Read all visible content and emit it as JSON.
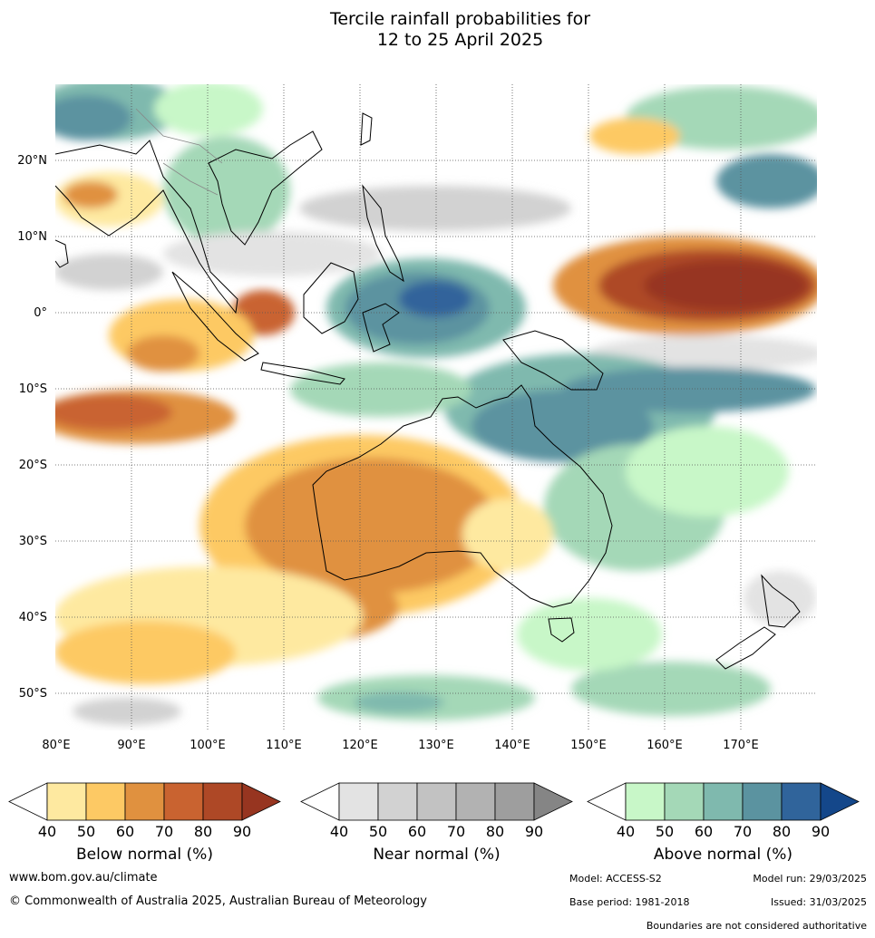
{
  "title_line1": "Tercile rainfall probabilities for",
  "title_line2": "12 to 25 April 2025",
  "lon_ticks": [
    "80°E",
    "90°E",
    "100°E",
    "110°E",
    "120°E",
    "130°E",
    "140°E",
    "150°E",
    "160°E",
    "170°E"
  ],
  "lat_ticks": [
    "20°N",
    "10°N",
    "0°",
    "10°S",
    "20°S",
    "30°S",
    "40°S",
    "50°S"
  ],
  "legends": [
    {
      "label": "Below normal (%)",
      "ticks": [
        "40",
        "50",
        "60",
        "70",
        "80",
        "90"
      ],
      "colors": [
        "#ffffff",
        "#fee9a0",
        "#fdc964",
        "#e0913f",
        "#c96330",
        "#ae4826",
        "#973520"
      ]
    },
    {
      "label": "Near normal (%)",
      "ticks": [
        "40",
        "50",
        "60",
        "70",
        "80",
        "90"
      ],
      "colors": [
        "#ffffff",
        "#e3e3e3",
        "#d2d2d2",
        "#c2c2c2",
        "#b2b2b2",
        "#9e9e9e",
        "#858585"
      ]
    },
    {
      "label": "Above normal (%)",
      "ticks": [
        "40",
        "50",
        "60",
        "70",
        "80",
        "90"
      ],
      "colors": [
        "#ffffff",
        "#c8f7c8",
        "#a4d8b7",
        "#7fb9ae",
        "#5b93a0",
        "#30649b",
        "#14478a"
      ]
    }
  ],
  "footer": {
    "website": "www.bom.gov.au/climate",
    "copyright": "© Commonwealth of Australia 2025, Australian Bureau of Meteorology",
    "model": "Model: ACCESS-S2",
    "base_period": "Base period: 1981-2018",
    "model_run": "Model run: 29/03/2025",
    "issued": "Issued: 31/03/2025",
    "disclaimer": "Boundaries are not considered authoritative"
  }
}
